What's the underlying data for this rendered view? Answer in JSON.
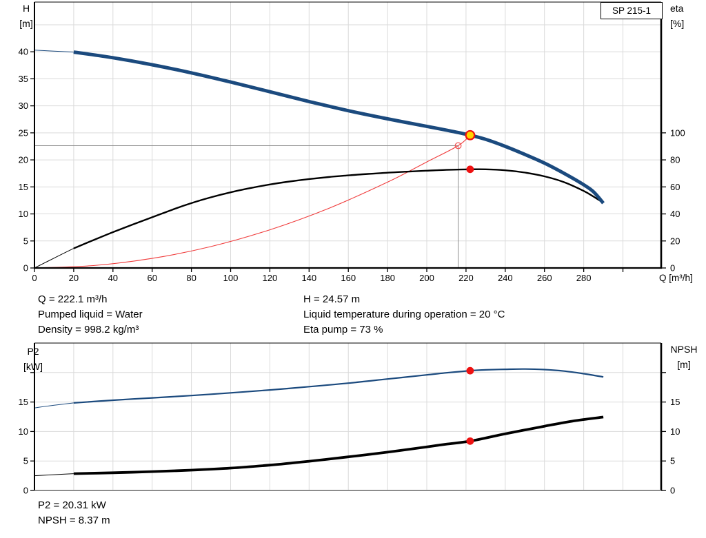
{
  "product": "SP 215-1",
  "colors": {
    "curve_blue": "#1b4a7e",
    "curve_black": "#000000",
    "system_curve_red": "#f03c3c",
    "marker_red": "#ee1111",
    "marker_yellow": "#ffd400",
    "grid": "#dadada",
    "crosshair": "#8c8c8c",
    "axis": "#000000",
    "bottom_baseline": "#8c8c8c"
  },
  "annotations": {
    "top_left": [
      "Q = 222.1 m³/h",
      "Pumped liquid = Water",
      "Density = 998.2 kg/m³"
    ],
    "top_right": [
      "H = 24.57 m",
      "Liquid temperature during operation = 20 °C",
      "Eta pump = 73 %"
    ],
    "bottom_left": [
      "P2 = 20.31 kW",
      "NPSH = 8.37 m"
    ]
  },
  "chart_data": [
    {
      "type": "line",
      "name": "hq-eta-chart",
      "title": "SP 215-1",
      "x_axis": {
        "label": "Q [m³/h]",
        "min": 0,
        "max": 319.5,
        "tick_step": 20,
        "tick_max": 300,
        "label_max": 280
      },
      "y_left": {
        "label_lines": [
          "H",
          "[m]"
        ],
        "min": 0,
        "max": 49.2,
        "tick_step": 5,
        "tick_max": 40,
        "label_max": 40,
        "grid_max": 45
      },
      "y_right": {
        "label_lines": [
          "eta",
          "[%]"
        ],
        "min": 0,
        "max": 196.8,
        "tick_step": 20,
        "tick_max": 100,
        "label_max": 100
      },
      "crosshair": {
        "q": 216,
        "h": 22.63
      },
      "series": [
        {
          "name": "system-curve",
          "legend": "System curve",
          "axis": "left",
          "color": "#f03c3c",
          "width": 1.1,
          "points": [
            [
              0,
              0
            ],
            [
              30,
              0.45
            ],
            [
              60,
              1.77
            ],
            [
              90,
              3.97
            ],
            [
              120,
              7.06
            ],
            [
              150,
              11.03
            ],
            [
              180,
              15.88
            ],
            [
              200,
              19.61
            ],
            [
              216,
              22.63
            ],
            [
              222.1,
              24.57
            ]
          ]
        },
        {
          "name": "eta-curve",
          "legend": "Eta pump",
          "axis": "right",
          "color": "#000000",
          "width": 2.4,
          "thin_until": 20,
          "points": [
            [
              0,
              0
            ],
            [
              10,
              7.3
            ],
            [
              20,
              14.5
            ],
            [
              30,
              20.6
            ],
            [
              40,
              26.5
            ],
            [
              50,
              32.1
            ],
            [
              60,
              37.5
            ],
            [
              70,
              43
            ],
            [
              80,
              48
            ],
            [
              90,
              52.3
            ],
            [
              100,
              56
            ],
            [
              110,
              59.1
            ],
            [
              120,
              61.8
            ],
            [
              130,
              64
            ],
            [
              140,
              65.8
            ],
            [
              150,
              67.3
            ],
            [
              160,
              68.5
            ],
            [
              170,
              69.6
            ],
            [
              180,
              70.5
            ],
            [
              190,
              71.3
            ],
            [
              200,
              72
            ],
            [
              210,
              72.6
            ],
            [
              222.1,
              73
            ],
            [
              230,
              73
            ],
            [
              240,
              72.3
            ],
            [
              250,
              70.6
            ],
            [
              260,
              67.8
            ],
            [
              270,
              63.5
            ],
            [
              280,
              57
            ],
            [
              285,
              52.8
            ],
            [
              290,
              48.2
            ]
          ]
        },
        {
          "name": "h-curve",
          "legend": "H",
          "axis": "left",
          "color": "#1b4a7e",
          "width": 5,
          "thin_until": 20,
          "points": [
            [
              0,
              40.3
            ],
            [
              20,
              39.95
            ],
            [
              40,
              38.9
            ],
            [
              60,
              37.6
            ],
            [
              80,
              36.1
            ],
            [
              100,
              34.4
            ],
            [
              120,
              32.6
            ],
            [
              140,
              30.8
            ],
            [
              160,
              29.1
            ],
            [
              180,
              27.6
            ],
            [
              200,
              26.2
            ],
            [
              210,
              25.5
            ],
            [
              222.1,
              24.57
            ],
            [
              230,
              23.8
            ],
            [
              240,
              22.5
            ],
            [
              250,
              21
            ],
            [
              260,
              19.4
            ],
            [
              270,
              17.5
            ],
            [
              280,
              15.4
            ],
            [
              285,
              14.1
            ],
            [
              290,
              12
            ]
          ]
        }
      ],
      "markers": [
        {
          "name": "duty-point",
          "q": 222.1,
          "value": 24.57,
          "axis": "left",
          "style": "yellow"
        },
        {
          "name": "eta-point",
          "q": 222.1,
          "value": 73,
          "axis": "right",
          "style": "red"
        },
        {
          "name": "requested-duty-point",
          "q": 216,
          "value": 22.63,
          "axis": "left",
          "style": "open"
        }
      ]
    },
    {
      "type": "line",
      "name": "p2-npsh-chart",
      "x_axis": {
        "min": 0,
        "max": 319.5,
        "tick_step": 20,
        "tick_max": 300
      },
      "y_left": {
        "label_lines": [
          "P2",
          "[kW]"
        ],
        "min": 0,
        "max": 25,
        "tick_step": 5,
        "tick_max": 20,
        "label_max": 15,
        "grid_max": 20
      },
      "y_right": {
        "label_lines": [
          "NPSH",
          "[m]"
        ],
        "min": 0,
        "max": 25,
        "tick_step": 5,
        "tick_max": 20,
        "label_max": 15
      },
      "series": [
        {
          "name": "p2-curve",
          "legend": "P2",
          "axis": "left",
          "color": "#1b4a7e",
          "width": 2.2,
          "thin_until": 20,
          "points": [
            [
              0,
              14
            ],
            [
              10,
              14.45
            ],
            [
              20,
              14.85
            ],
            [
              40,
              15.3
            ],
            [
              60,
              15.7
            ],
            [
              80,
              16.1
            ],
            [
              100,
              16.55
            ],
            [
              120,
              17.05
            ],
            [
              140,
              17.6
            ],
            [
              160,
              18.2
            ],
            [
              180,
              18.9
            ],
            [
              200,
              19.6
            ],
            [
              210,
              19.95
            ],
            [
              222.1,
              20.31
            ],
            [
              230,
              20.45
            ],
            [
              240,
              20.55
            ],
            [
              250,
              20.6
            ],
            [
              260,
              20.5
            ],
            [
              270,
              20.25
            ],
            [
              280,
              19.8
            ],
            [
              290,
              19.25
            ]
          ]
        },
        {
          "name": "npsh-curve",
          "legend": "NPSH",
          "axis": "right",
          "color": "#000000",
          "width": 3.8,
          "thin_until": 20,
          "points": [
            [
              0,
              2.5
            ],
            [
              10,
              2.68
            ],
            [
              20,
              2.85
            ],
            [
              40,
              3
            ],
            [
              60,
              3.2
            ],
            [
              80,
              3.45
            ],
            [
              100,
              3.8
            ],
            [
              120,
              4.3
            ],
            [
              140,
              4.95
            ],
            [
              160,
              5.7
            ],
            [
              180,
              6.5
            ],
            [
              200,
              7.4
            ],
            [
              210,
              7.85
            ],
            [
              222.1,
              8.37
            ],
            [
              240,
              9.6
            ],
            [
              260,
              10.9
            ],
            [
              275,
              11.8
            ],
            [
              290,
              12.45
            ]
          ]
        }
      ],
      "markers": [
        {
          "name": "p2-point",
          "q": 222.1,
          "value": 20.31,
          "axis": "left",
          "style": "red"
        },
        {
          "name": "npsh-point",
          "q": 222.1,
          "value": 8.37,
          "axis": "right",
          "style": "red"
        }
      ]
    }
  ]
}
